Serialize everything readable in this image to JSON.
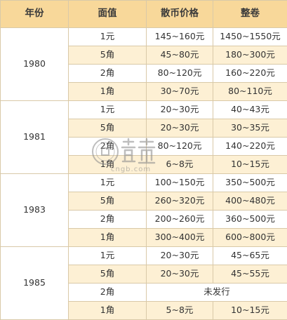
{
  "table": {
    "headers": [
      "年份",
      "面值",
      "散币价格",
      "整卷"
    ],
    "groups": [
      {
        "year": "1980",
        "rows": [
          {
            "denom": "1元",
            "loose": "145~160元",
            "roll": "1450~1550元"
          },
          {
            "denom": "5角",
            "loose": "45~80元",
            "roll": "180~300元"
          },
          {
            "denom": "2角",
            "loose": "80~120元",
            "roll": "160~220元"
          },
          {
            "denom": "1角",
            "loose": "30~70元",
            "roll": "80~110元"
          }
        ]
      },
      {
        "year": "1981",
        "rows": [
          {
            "denom": "1元",
            "loose": "20~30元",
            "roll": "40~43元"
          },
          {
            "denom": "5角",
            "loose": "20~30元",
            "roll": "30~35元"
          },
          {
            "denom": "2角",
            "loose": "80~120元",
            "roll": "140~220元"
          },
          {
            "denom": "1角",
            "loose": "6~8元",
            "roll": "10~15元"
          }
        ]
      },
      {
        "year": "1983",
        "rows": [
          {
            "denom": "1元",
            "loose": "100~150元",
            "roll": "350~500元"
          },
          {
            "denom": "5角",
            "loose": "260~320元",
            "roll": "400~480元"
          },
          {
            "denom": "2角",
            "loose": "200~260元",
            "roll": "360~500元"
          },
          {
            "denom": "1角",
            "loose": "300~400元",
            "roll": "600~800元"
          }
        ]
      },
      {
        "year": "1985",
        "rows": [
          {
            "denom": "1元",
            "loose": "20~30元",
            "roll": "45~65元"
          },
          {
            "denom": "5角",
            "loose": "20~30元",
            "roll": "45~55元"
          },
          {
            "denom": "2角",
            "merged": "未发行"
          },
          {
            "denom": "1角",
            "loose": "5~8元",
            "roll": "10~15元"
          }
        ]
      }
    ]
  },
  "watermark": {
    "text": "藏宝",
    "domain": "cngb.com"
  },
  "colors": {
    "header_bg": "#f8d89a",
    "tan_row": "#fdf0d4",
    "border": "#d9c9a8"
  }
}
